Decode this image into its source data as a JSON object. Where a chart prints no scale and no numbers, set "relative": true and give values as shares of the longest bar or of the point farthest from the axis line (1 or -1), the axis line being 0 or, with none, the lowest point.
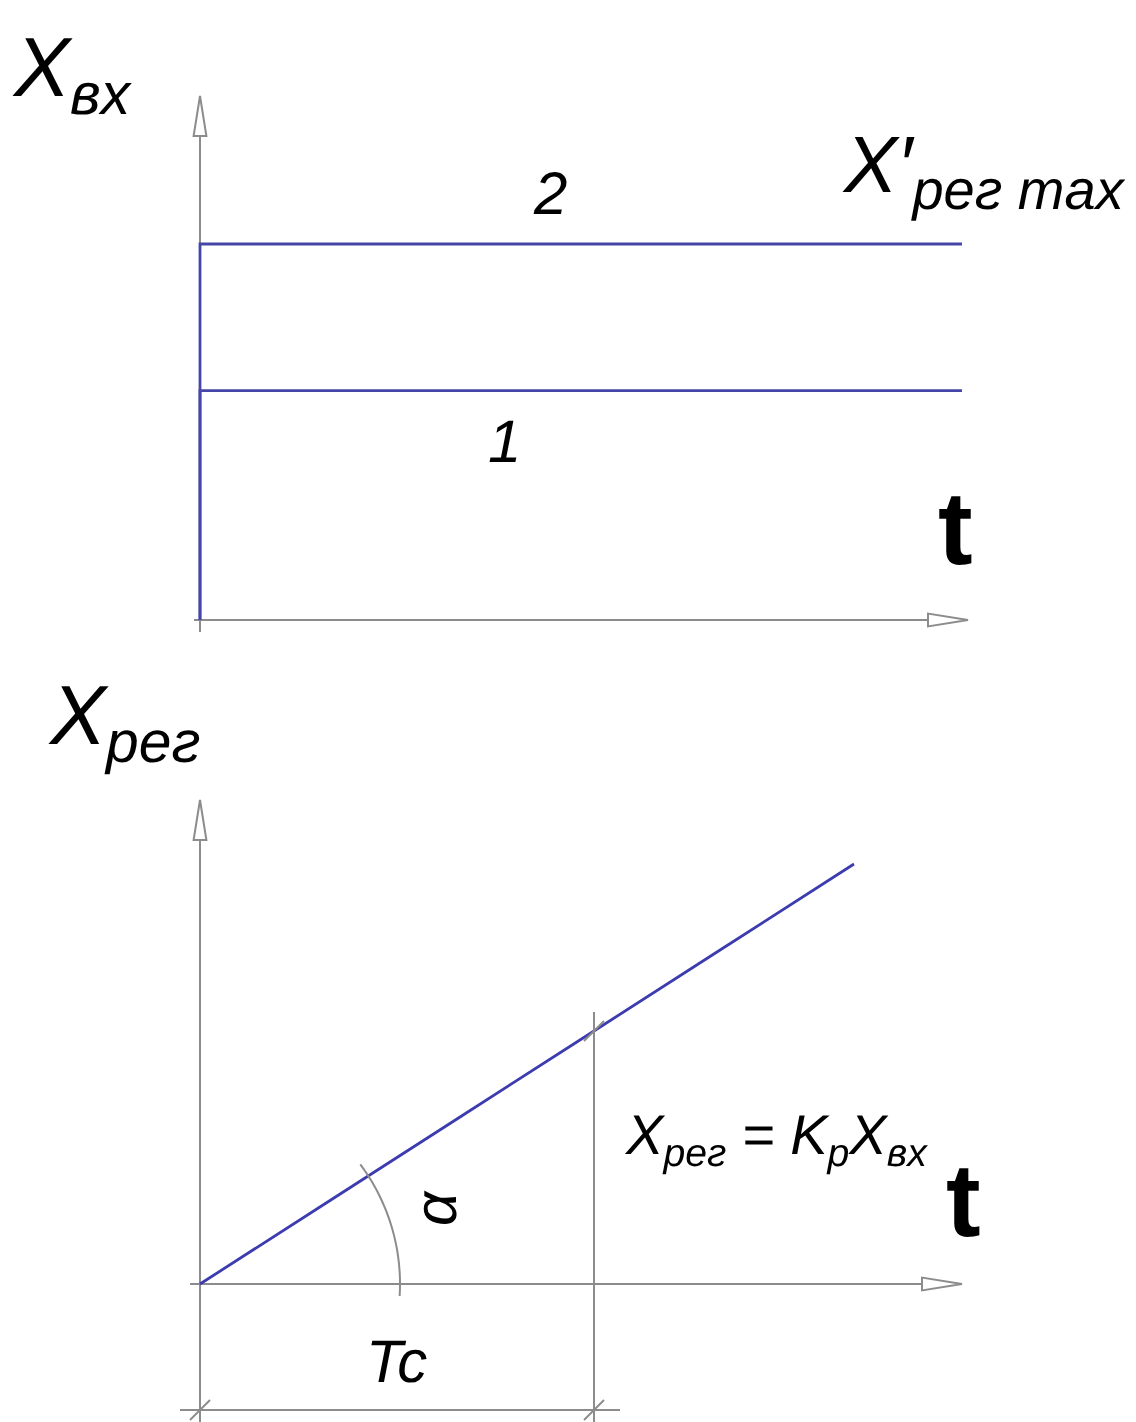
{
  "chart_data": [
    {
      "type": "step",
      "ylabel": "X$_{вх}$",
      "xlabel": "t",
      "categories": [
        null,
        null
      ],
      "relative": true,
      "series": [
        {
          "name": "2",
          "color": "#4646a8",
          "values": [
            0,
            1
          ]
        },
        {
          "name": "1",
          "color": "#4646a8",
          "values": [
            0,
            0.61
          ]
        }
      ],
      "annotations": [
        "X′$_{рег max}$"
      ],
      "legend": false
    },
    {
      "type": "line",
      "ylabel": "X$_{рег}$",
      "xlabel": "t",
      "categories": [
        null,
        null,
        null,
        null,
        null,
        null
      ],
      "relative": true,
      "series": [
        {
          "color": "#3c3cb0",
          "values": [
            0,
            0.2,
            0.4,
            0.6,
            0.8,
            1
          ]
        }
      ],
      "annotations": [
        "X$_{рег}$ = K$_{р}$X$_{вх}$",
        "α",
        "Tc"
      ],
      "legend": false
    }
  ]
}
